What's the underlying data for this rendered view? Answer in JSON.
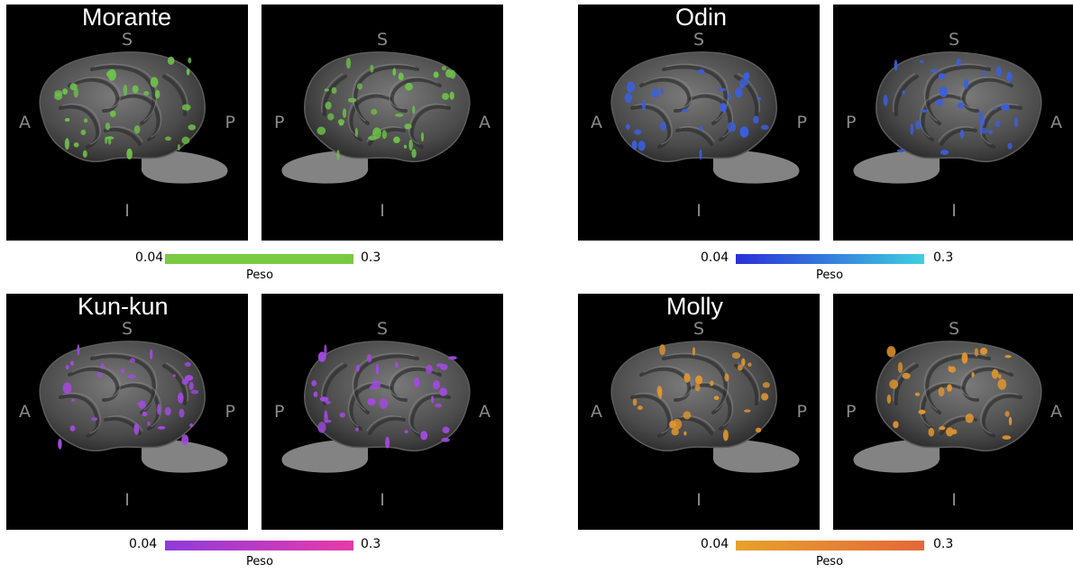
{
  "orientation": {
    "superior": "S",
    "inferior": "I",
    "anterior": "A",
    "posterior": "P"
  },
  "subjects": [
    {
      "name": "Morante",
      "color": "#6fc14b",
      "cbar_min": "0.04",
      "cbar_max": "0.3",
      "cbar_label": "Peso",
      "cbar_colors": [
        "#7ac943",
        "#7ac943"
      ]
    },
    {
      "name": "Odin",
      "color": "#3b5fe0",
      "cbar_min": "0.04",
      "cbar_max": "0.3",
      "cbar_label": "Peso",
      "cbar_colors": [
        "#2a2fd8",
        "#40d0e0"
      ]
    },
    {
      "name": "Kun-kun",
      "color": "#a24ae0",
      "cbar_min": "0.04",
      "cbar_max": "0.3",
      "cbar_label": "Peso",
      "cbar_colors": [
        "#8f3bdc",
        "#e83aa8"
      ]
    },
    {
      "name": "Molly",
      "color": "#e3962e",
      "cbar_min": "0.04",
      "cbar_max": "0.3",
      "cbar_label": "Peso",
      "cbar_colors": [
        "#e6a12b",
        "#e4683a"
      ]
    }
  ]
}
